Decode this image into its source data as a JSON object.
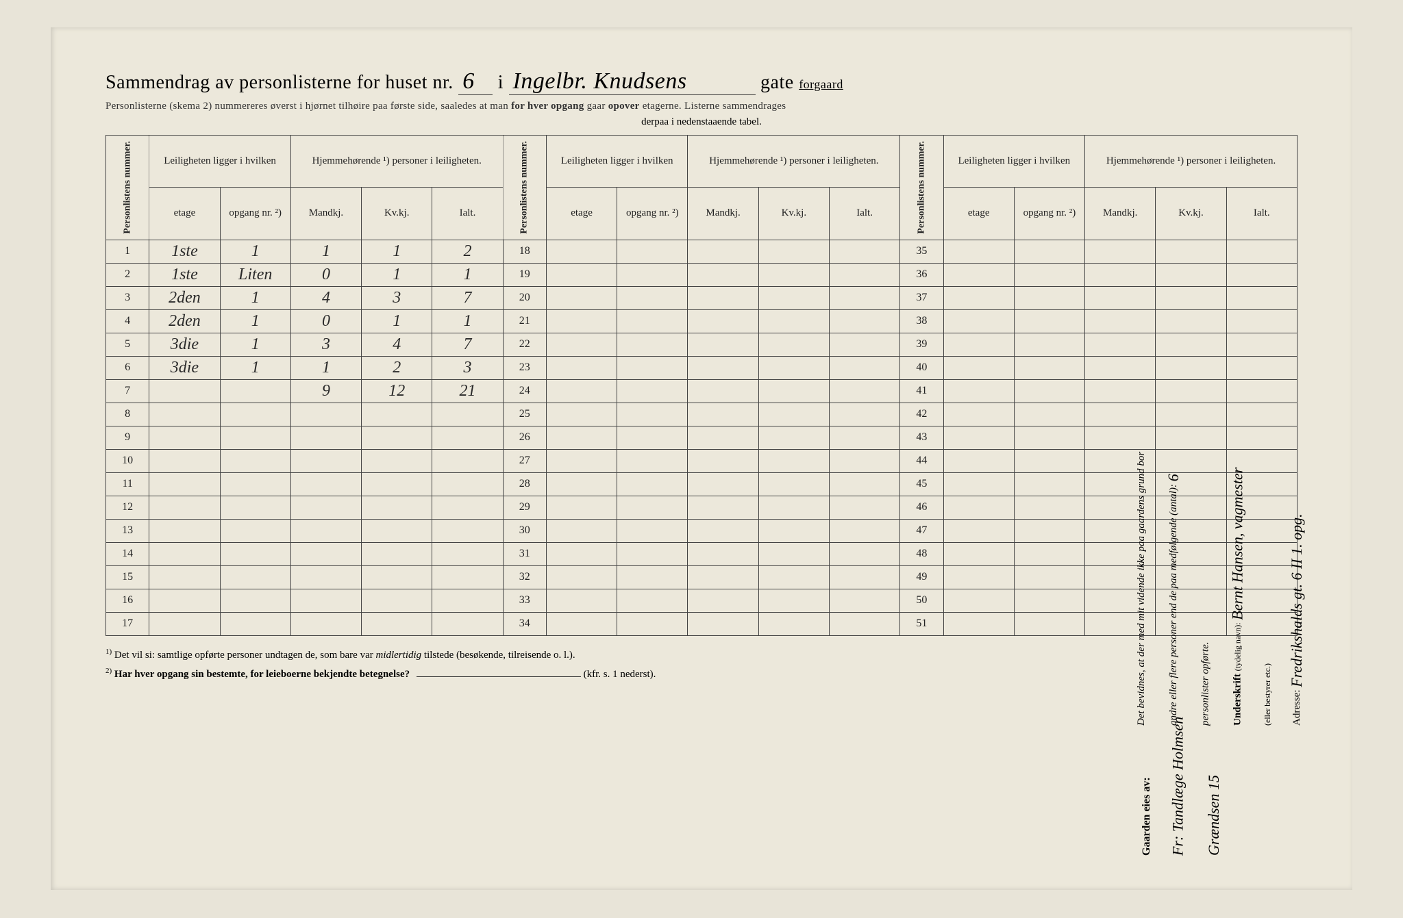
{
  "title": {
    "prefix": "Sammendrag av personlisterne for huset nr.",
    "house_nr": "6",
    "mid": "i",
    "street": "Ingelbr. Knudsens",
    "suffix_gate": "gate",
    "gaard": "forgaard"
  },
  "subtitle1": {
    "text_a": "Personlisterne (skema 2) nummereres øverst i hjørnet tilhøire paa første side, saaledes at man",
    "emph1": "for hver opgang",
    "text_b": "gaar",
    "emph2": "opover",
    "text_c": "etagerne.  Listerne sammendrages"
  },
  "subtitle2": "derpaa i nedenstaaende tabel.",
  "headers": {
    "personlistens": "Personlistens nummer.",
    "leiligheten": "Leiligheten ligger i hvilken",
    "hjemme": "Hjemmehørende ¹) personer i leiligheten.",
    "etage": "etage",
    "opgang": "opgang nr. ²)",
    "mandkj": "Mandkj.",
    "kvkj": "Kv.kj.",
    "ialt": "Ialt."
  },
  "rows_block1": [
    {
      "n": "1",
      "etage": "1ste",
      "opgang": "1",
      "m": "1",
      "k": "1",
      "i": "2"
    },
    {
      "n": "2",
      "etage": "1ste",
      "opgang": "Liten",
      "m": "0",
      "k": "1",
      "i": "1"
    },
    {
      "n": "3",
      "etage": "2den",
      "opgang": "1",
      "m": "4",
      "k": "3",
      "i": "7"
    },
    {
      "n": "4",
      "etage": "2den",
      "opgang": "1",
      "m": "0",
      "k": "1",
      "i": "1"
    },
    {
      "n": "5",
      "etage": "3die",
      "opgang": "1",
      "m": "3",
      "k": "4",
      "i": "7"
    },
    {
      "n": "6",
      "etage": "3die",
      "opgang": "1",
      "m": "1",
      "k": "2",
      "i": "3"
    },
    {
      "n": "7",
      "etage": "",
      "opgang": "",
      "m": "9",
      "k": "12",
      "i": "21"
    },
    {
      "n": "8"
    },
    {
      "n": "9"
    },
    {
      "n": "10"
    },
    {
      "n": "11"
    },
    {
      "n": "12"
    },
    {
      "n": "13"
    },
    {
      "n": "14"
    },
    {
      "n": "15"
    },
    {
      "n": "16"
    },
    {
      "n": "17"
    }
  ],
  "rows_block2_start": 18,
  "rows_block3_start": 35,
  "footnotes": {
    "n1": "Det vil si: samtlige opførte personer undtagen de, som bare var",
    "n1_em": "midlertidig",
    "n1_b": "tilstede (besøkende, tilreisende o. l.).",
    "n2": "Har hver opgang sin bestemte, for leieboerne bekjendte betegnelse?",
    "n2_b": "(kfr. s. 1 nederst)."
  },
  "right": {
    "bevidnes_a": "Det bevidnes, at der med mit vidende ikke paa gaardens grund bor",
    "bevidnes_b": "andre eller flere personer end de paa medfølgende (antal):",
    "antal": "6",
    "bevidnes_c": "personlister opførte.",
    "underskrift_label": "Underskrift",
    "underskrift_small": "(tydelig navn):",
    "underskrift_name": "Bernt Hansen, vagmester",
    "eier_small": "(eller bestyrer etc.)",
    "adresse_label": "Adresse:",
    "adresse": "Fredrikshalds gt. 6 II 1. opg."
  },
  "owner": {
    "label": "Gaarden eies av:",
    "name": "Fr: Tandlæge Holmsen",
    "addr": "Grændsen 15"
  },
  "colors": {
    "paper": "#ece8db",
    "bg": "#e8e4d8",
    "ink": "#222222",
    "border": "#444444"
  }
}
